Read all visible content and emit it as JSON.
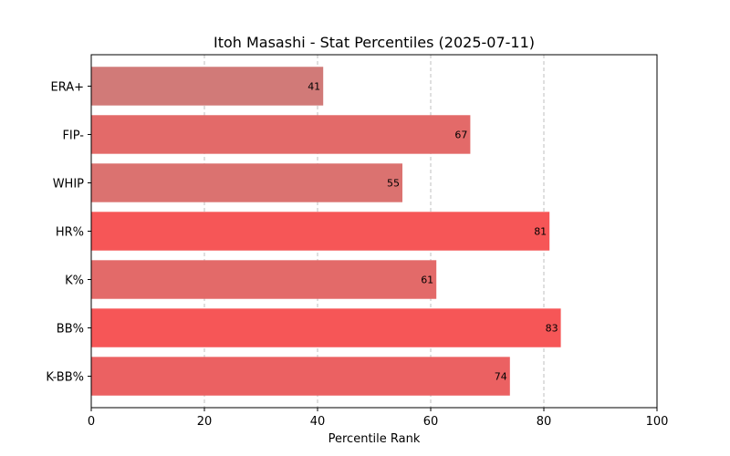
{
  "chart_data": {
    "type": "bar",
    "orientation": "horizontal",
    "title": "Itoh Masashi - Stat Percentiles (2025-07-11)",
    "xlabel": "Percentile Rank",
    "ylabel": "",
    "xlim": [
      0,
      100
    ],
    "xticks": [
      0,
      20,
      40,
      60,
      80,
      100
    ],
    "grid": "vertical dashed",
    "categories": [
      "ERA+",
      "FIP-",
      "WHIP",
      "HR%",
      "K%",
      "BB%",
      "K-BB%"
    ],
    "values": [
      41,
      67,
      55,
      81,
      61,
      83,
      74
    ],
    "colors": [
      "#d17a78",
      "#e36a69",
      "#db7270",
      "#f65657",
      "#e36a69",
      "#f65657",
      "#eb6162"
    ]
  }
}
